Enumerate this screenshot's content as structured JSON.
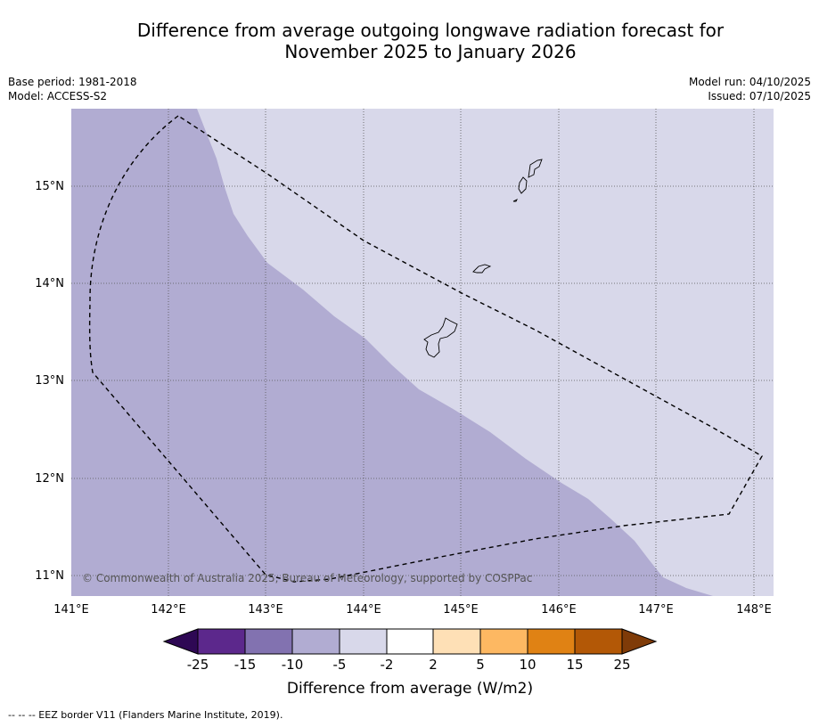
{
  "title": {
    "line1": "Difference from average outgoing longwave radiation forecast for",
    "line2": "November 2025 to January 2026"
  },
  "meta": {
    "base_period": "Base period: 1981-2018",
    "model": "Model: ACCESS-S2",
    "model_run": "Model run: 04/10/2025",
    "issued": "Issued: 07/10/2025"
  },
  "map": {
    "lon_range": [
      141.0,
      148.2
    ],
    "lat_range": [
      10.8,
      15.8
    ],
    "lat_ticks": [
      "15°N",
      "14°N",
      "13°N",
      "12°N",
      "11°N"
    ],
    "lon_ticks": [
      "141°E",
      "142°E",
      "143°E",
      "144°E",
      "145°E",
      "146°E",
      "147°E",
      "148°E"
    ],
    "copyright": "© Commonwealth of Australia 2025, Bureau of Meteorology, supported by COSPPac",
    "regions": [
      {
        "category": "-10 to -5",
        "color": "#b1acd2"
      },
      {
        "category": "-5 to -2",
        "color": "#d8d8ea"
      }
    ]
  },
  "colorbar": {
    "title": "Difference from average (W/m2)",
    "ticks": [
      "-25",
      "-15",
      "-10",
      "-5",
      "-2",
      "2",
      "5",
      "10",
      "15",
      "25"
    ],
    "colors": {
      "under": "#2e0854",
      "bins": [
        "#5c288c",
        "#8272b0",
        "#b1acd2",
        "#d8d8ea",
        "#ffffff",
        "#fee0b6",
        "#fdb862",
        "#e08214",
        "#b35806"
      ],
      "over": "#7f3b08"
    }
  },
  "footnote": "--  --  -- EEZ border V11 (Flanders Marine Institute, 2019)."
}
